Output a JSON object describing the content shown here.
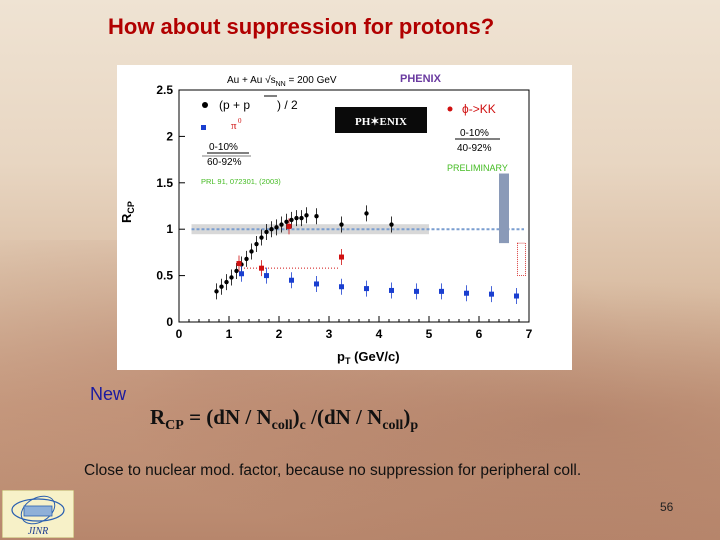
{
  "slide": {
    "title": "How about suppression for protons?",
    "new_label": "New",
    "formula": {
      "lhs": "R",
      "lhs_sub": "CP",
      "eq": " = (dN / N",
      "coll1": "coll",
      "mid": ")",
      "c": "c",
      "mid2": " /(dN / N",
      "coll2": "coll",
      "end": ")",
      "p": "p"
    },
    "note": "Close to nuclear mod. factor, because no suppression for peripheral coll.",
    "page_number": "56",
    "logo_text": "JINR"
  },
  "figure": {
    "header": "Au + Au  √s",
    "header_sub": "NN",
    "header_tail": " = 200 GeV",
    "phenix": "PHENIX",
    "phenix_logo_text": "PH✶ENIX",
    "legend_pp_a": "(p + p",
    "legend_pp_b": ")  / 2",
    "legend_pi0": "π",
    "legend_pi0_sup": "0",
    "legend_cent1": "0-10%",
    "legend_cent2": "60-92%",
    "ref": "PRL 91, 072301, (2003)",
    "phi_label": "ϕ->KK",
    "phi_cent1": "0-10%",
    "phi_cent2": "40-92%",
    "preliminary": "PRELIMINARY",
    "colors": {
      "proton": "#000000",
      "pi0": "#1a3fd0",
      "phi": "#d01010",
      "preliminary": "#44bb22",
      "phenix": "#6a3aa0"
    }
  },
  "chart_data": {
    "type": "scatter",
    "title": "",
    "xlabel": "p_T (GeV/c)",
    "ylabel": "R_CP",
    "xlim": [
      0,
      7
    ],
    "ylim": [
      0,
      2.5
    ],
    "x_ticks": [
      "0",
      "1",
      "2",
      "3",
      "4",
      "5",
      "6",
      "7"
    ],
    "y_ticks": [
      "0",
      "0.5",
      "1",
      "1.5",
      "2",
      "2.5"
    ],
    "series": [
      {
        "name": "(p + p̄)/2",
        "marker": "circle",
        "color": "#000000",
        "x": [
          0.75,
          0.85,
          0.95,
          1.05,
          1.15,
          1.25,
          1.35,
          1.45,
          1.55,
          1.65,
          1.75,
          1.85,
          1.95,
          2.05,
          2.15,
          2.25,
          2.35,
          2.45,
          2.55,
          2.75,
          3.25,
          3.75,
          4.25
        ],
        "y": [
          0.33,
          0.38,
          0.43,
          0.48,
          0.55,
          0.62,
          0.68,
          0.76,
          0.84,
          0.91,
          0.97,
          1.0,
          1.02,
          1.05,
          1.08,
          1.1,
          1.12,
          1.12,
          1.15,
          1.14,
          1.05,
          1.17,
          1.05
        ]
      },
      {
        "name": "π0",
        "marker": "square",
        "color": "#1a3fd0",
        "x": [
          1.25,
          1.75,
          2.25,
          2.75,
          3.25,
          3.75,
          4.25,
          4.75,
          5.25,
          5.75,
          6.25,
          6.75
        ],
        "y": [
          0.52,
          0.5,
          0.45,
          0.41,
          0.38,
          0.36,
          0.34,
          0.33,
          0.33,
          0.31,
          0.3,
          0.28
        ]
      },
      {
        "name": "ϕ->KK",
        "marker": "square",
        "color": "#d01010",
        "x": [
          1.2,
          1.65,
          2.2,
          3.25
        ],
        "y": [
          0.63,
          0.58,
          1.03,
          0.7
        ]
      }
    ],
    "reference_line_dotted": 1.0,
    "grid": false
  }
}
